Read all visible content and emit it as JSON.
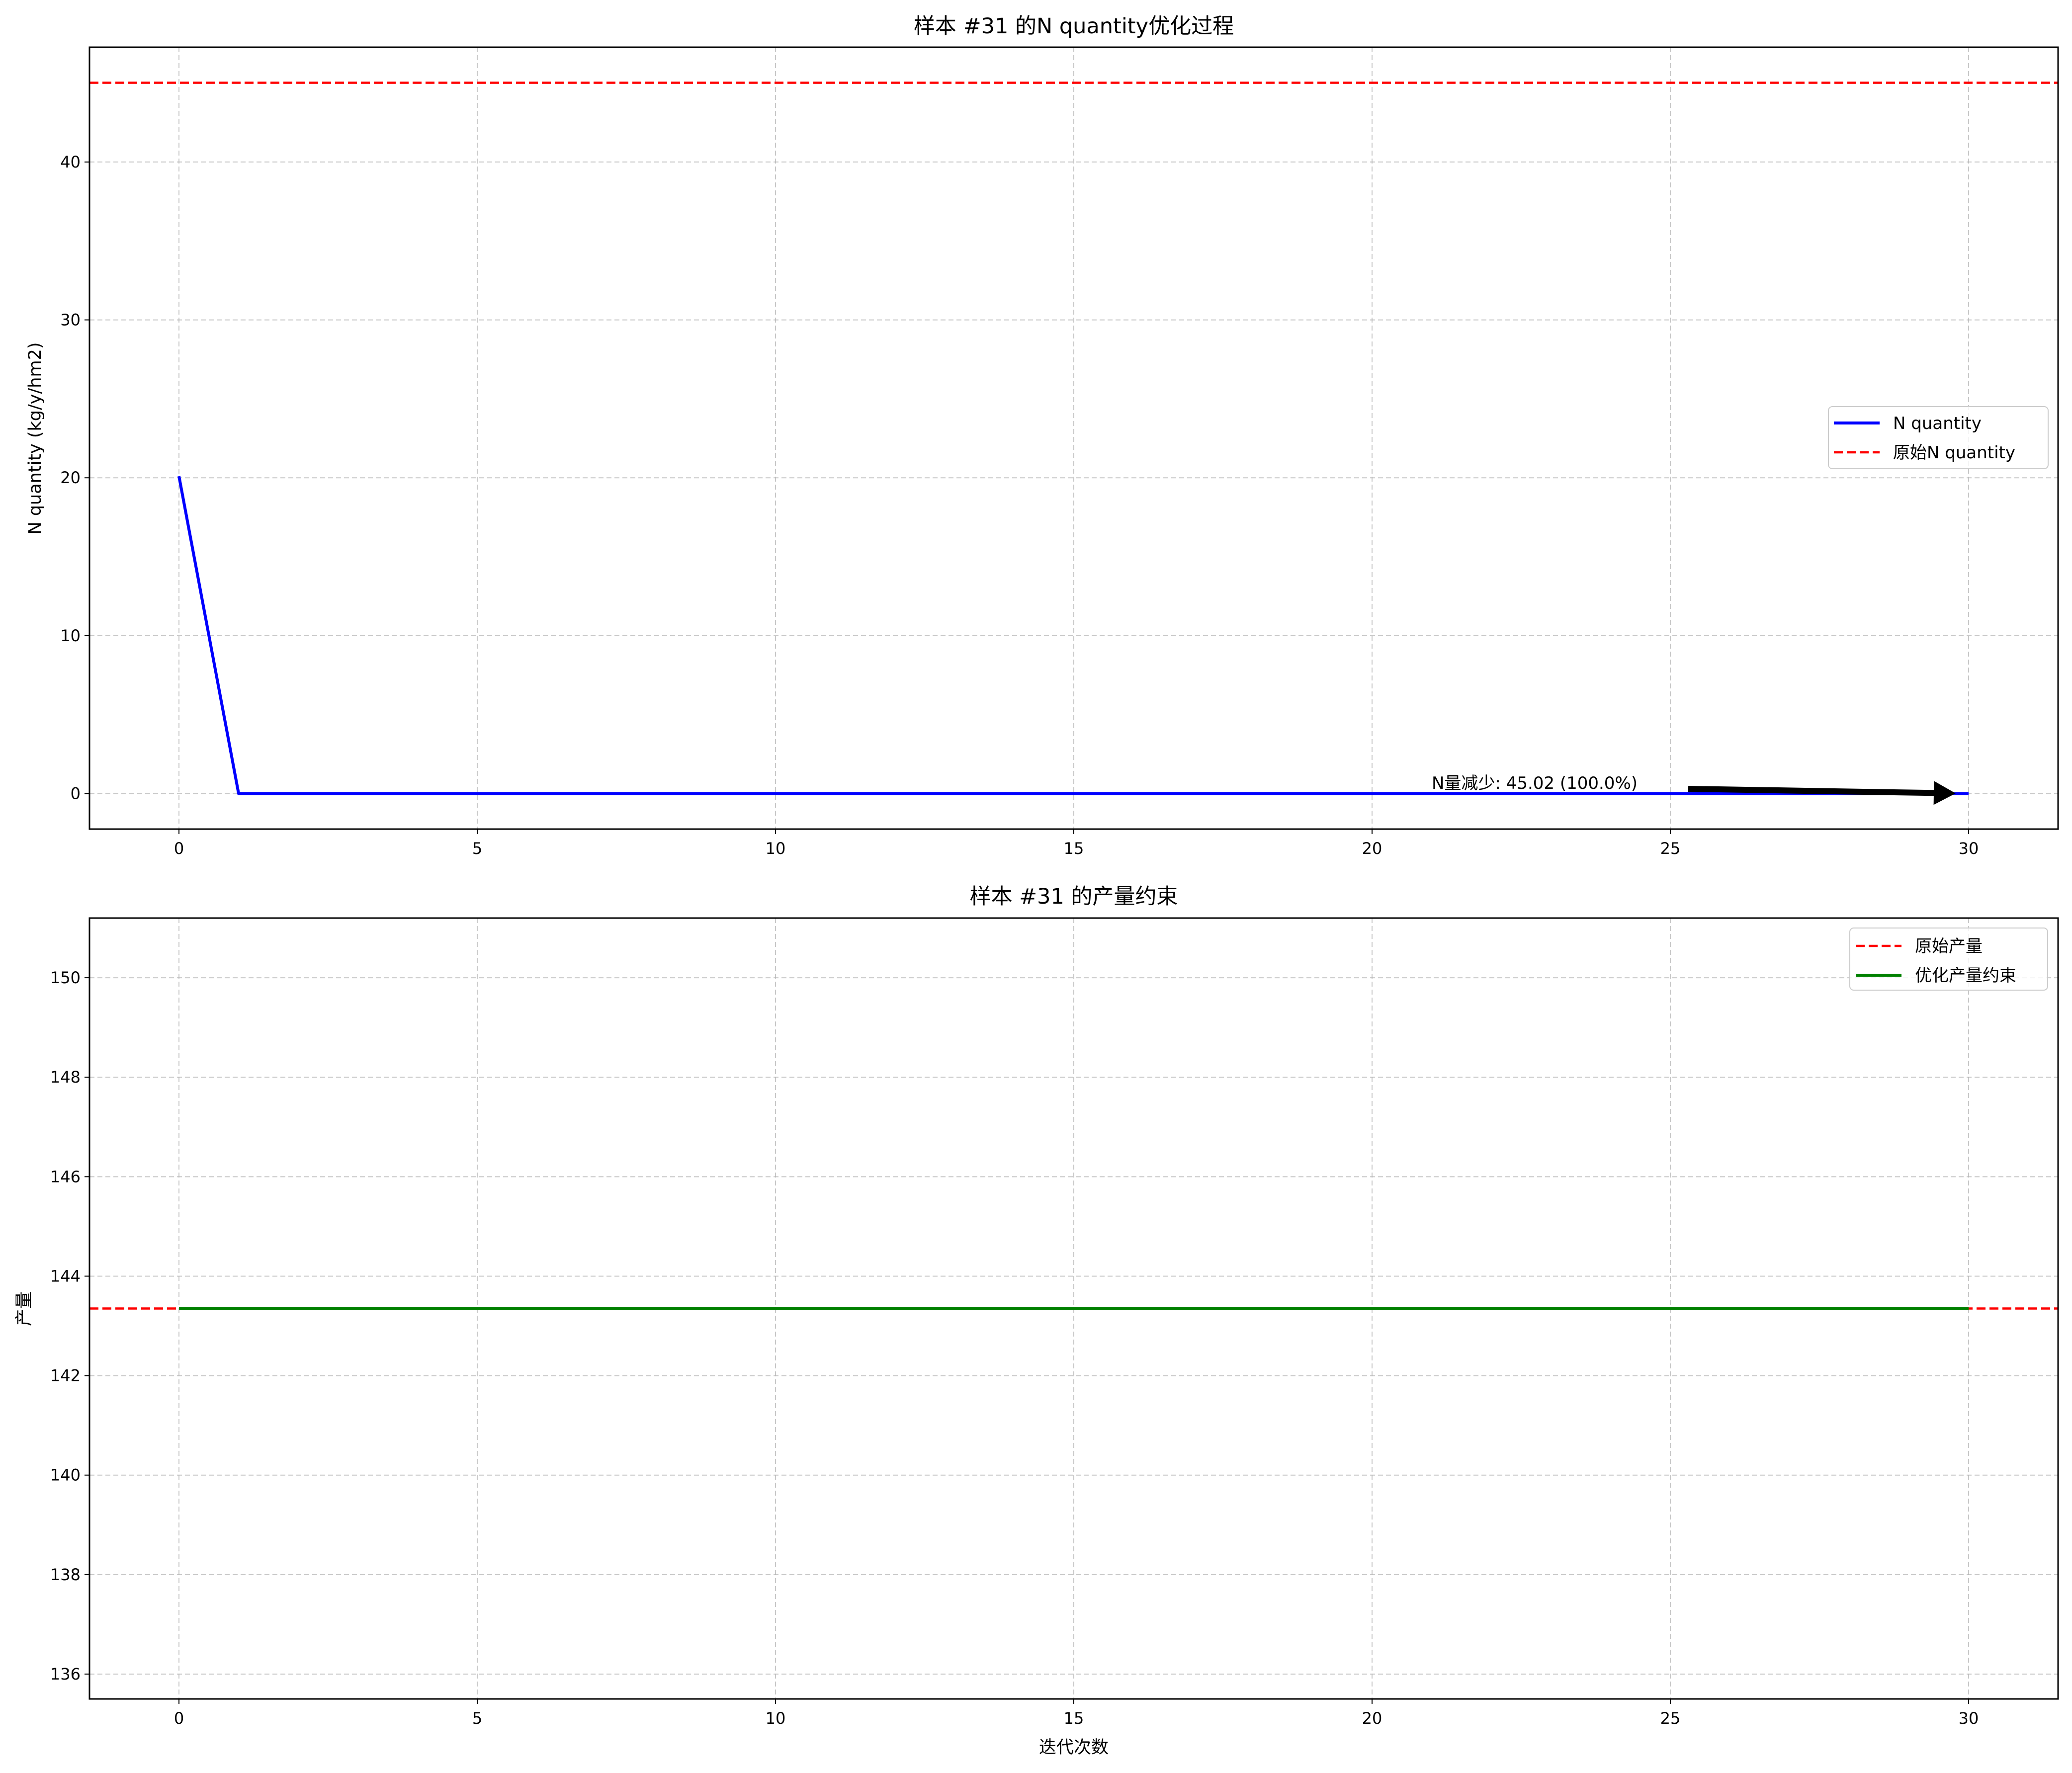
{
  "chart_data": [
    {
      "type": "line",
      "title": "样本 #31 的N quantity优化过程",
      "xlabel": "",
      "ylabel": "N quantity (kg/y/hm2)",
      "xlim": [
        -1.5,
        31.5
      ],
      "ylim": [
        -2.25,
        47.27
      ],
      "xticks": [
        0,
        5,
        10,
        15,
        20,
        25,
        30
      ],
      "yticks": [
        0,
        10,
        20,
        30,
        40
      ],
      "grid": true,
      "legend_position": "center-right",
      "series": [
        {
          "name": "N quantity",
          "color": "#0000ff",
          "style": "solid",
          "x": [
            0,
            1,
            2,
            3,
            4,
            5,
            6,
            7,
            8,
            9,
            10,
            11,
            12,
            13,
            14,
            15,
            16,
            17,
            18,
            19,
            20,
            21,
            22,
            23,
            24,
            25,
            26,
            27,
            28,
            29,
            30
          ],
          "y": [
            20.1,
            0,
            0,
            0,
            0,
            0,
            0,
            0,
            0,
            0,
            0,
            0,
            0,
            0,
            0,
            0,
            0,
            0,
            0,
            0,
            0,
            0,
            0,
            0,
            0,
            0,
            0,
            0,
            0,
            0,
            0
          ]
        },
        {
          "name": "原始N quantity",
          "color": "#ff0000",
          "style": "dashed",
          "hline": 45.02
        }
      ],
      "annotation": {
        "text": "N量减少: 45.02 (100.0%)",
        "text_x": 21,
        "text_y": 0.3,
        "arrow_from": [
          25.3,
          0.3
        ],
        "arrow_to": [
          30,
          0
        ]
      }
    },
    {
      "type": "line",
      "title": "样本 #31 的产量约束",
      "xlabel": "迭代次数",
      "ylabel": "产量",
      "xlim": [
        -1.5,
        31.5
      ],
      "ylim": [
        135.5,
        151.2
      ],
      "xticks": [
        0,
        5,
        10,
        15,
        20,
        25,
        30
      ],
      "yticks": [
        136,
        138,
        140,
        142,
        144,
        146,
        148,
        150
      ],
      "grid": true,
      "legend_position": "top-right",
      "series": [
        {
          "name": "原始产量",
          "color": "#ff0000",
          "style": "dashed",
          "hline": 143.35
        },
        {
          "name": "优化产量约束",
          "color": "#008000",
          "style": "solid",
          "x": [
            0,
            1,
            2,
            3,
            4,
            5,
            6,
            7,
            8,
            9,
            10,
            11,
            12,
            13,
            14,
            15,
            16,
            17,
            18,
            19,
            20,
            21,
            22,
            23,
            24,
            25,
            26,
            27,
            28,
            29,
            30
          ],
          "y": [
            143.35,
            143.35,
            143.35,
            143.35,
            143.35,
            143.35,
            143.35,
            143.35,
            143.35,
            143.35,
            143.35,
            143.35,
            143.35,
            143.35,
            143.35,
            143.35,
            143.35,
            143.35,
            143.35,
            143.35,
            143.35,
            143.35,
            143.35,
            143.35,
            143.35,
            143.35,
            143.35,
            143.35,
            143.35,
            143.35,
            143.35
          ]
        }
      ]
    }
  ]
}
